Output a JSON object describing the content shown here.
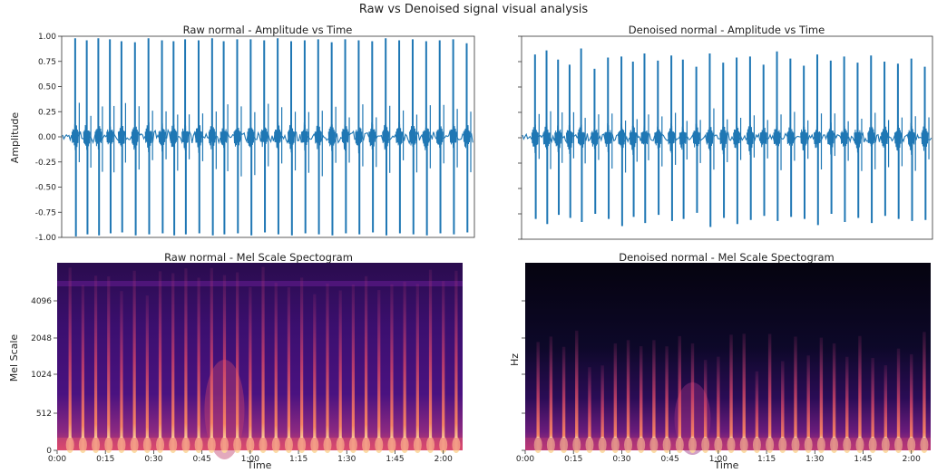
{
  "figure": {
    "title": "Raw vs Denoised signal visual analysis"
  },
  "colors": {
    "waveform": "#1f77b4",
    "spec_background": "#0d0829",
    "spec_mid": "#6a1c7c",
    "spec_hot": "#f2a45c"
  },
  "chart_data": [
    {
      "type": "line",
      "title": "Raw normal - Amplitude vs Time",
      "xlabel": "",
      "ylabel": "Amplitude",
      "ylim": [
        -1.0,
        1.0
      ],
      "y_ticks": [
        "1.00",
        "0.75",
        "0.50",
        "0.25",
        "0.00",
        "-0.25",
        "-0.50",
        "-0.75",
        "-1.00"
      ],
      "series": [
        {
          "beat_times_s": [
            0.07,
            0.13,
            0.19,
            0.25,
            0.31,
            0.38,
            0.45,
            0.52,
            0.58,
            0.64,
            0.71,
            0.78,
            0.84,
            0.91,
            0.98,
            1.05,
            1.12,
            1.19,
            1.26,
            1.33,
            1.4,
            1.47,
            1.54,
            1.61,
            1.68,
            1.75,
            1.82,
            1.89,
            1.96,
            2.03,
            2.1
          ],
          "peak_up": [
            0.98,
            0.96,
            0.98,
            0.97,
            0.95,
            0.94,
            0.98,
            0.96,
            0.95,
            0.97,
            0.96,
            0.98,
            0.95,
            0.97,
            0.97,
            0.96,
            0.98,
            0.95,
            0.96,
            0.97,
            0.94,
            0.97,
            0.96,
            0.95,
            0.98,
            0.96,
            0.97,
            0.95,
            0.96,
            0.97,
            0.93
          ],
          "peak_down": [
            -0.99,
            -0.97,
            -0.98,
            -0.96,
            -0.95,
            -0.98,
            -0.97,
            -0.96,
            -0.98,
            -0.97,
            -0.96,
            -0.98,
            -0.97,
            -0.96,
            -0.98,
            -0.95,
            -0.97,
            -0.98,
            -0.96,
            -0.97,
            -0.98,
            -0.96,
            -0.97,
            -0.95,
            -0.98,
            -0.96,
            -0.97,
            -0.98,
            -0.96,
            -0.97,
            -0.95
          ]
        }
      ]
    },
    {
      "type": "line",
      "title": "Denoised normal - Amplitude vs Time",
      "xlabel": "",
      "ylabel": "",
      "ylim": [
        -1.0,
        1.0
      ],
      "series": [
        {
          "beat_times_s": [
            0.07,
            0.13,
            0.19,
            0.25,
            0.31,
            0.38,
            0.45,
            0.52,
            0.58,
            0.64,
            0.71,
            0.78,
            0.84,
            0.91,
            0.98,
            1.05,
            1.12,
            1.19,
            1.26,
            1.33,
            1.4,
            1.47,
            1.54,
            1.61,
            1.68,
            1.75,
            1.82,
            1.89,
            1.96,
            2.03,
            2.1
          ],
          "peak_up": [
            0.82,
            0.86,
            0.77,
            0.72,
            0.88,
            0.68,
            0.79,
            0.8,
            0.75,
            0.83,
            0.76,
            0.81,
            0.77,
            0.7,
            0.83,
            0.74,
            0.79,
            0.8,
            0.72,
            0.85,
            0.78,
            0.71,
            0.82,
            0.76,
            0.8,
            0.74,
            0.81,
            0.75,
            0.73,
            0.78,
            0.7
          ],
          "peak_down": [
            -0.8,
            -0.85,
            -0.76,
            -0.79,
            -0.83,
            -0.75,
            -0.8,
            -0.87,
            -0.78,
            -0.84,
            -0.76,
            -0.82,
            -0.8,
            -0.74,
            -0.88,
            -0.79,
            -0.85,
            -0.81,
            -0.77,
            -0.82,
            -0.78,
            -0.8,
            -0.86,
            -0.75,
            -0.83,
            -0.79,
            -0.84,
            -0.77,
            -0.8,
            -0.82,
            -0.81
          ]
        }
      ]
    },
    {
      "type": "heatmap",
      "title": "Raw normal - Mel Scale Spectogram",
      "xlabel": "Time",
      "ylabel": "Mel Scale",
      "y_ticks": [
        "4096",
        "2048",
        "1024",
        "512",
        "0"
      ],
      "x_ticks": [
        "0:00",
        "0:15",
        "0:30",
        "0:45",
        "1:00",
        "1:15",
        "1:30",
        "1:45",
        "2:00"
      ],
      "x_tick_seconds": [
        0,
        15,
        30,
        45,
        60,
        75,
        90,
        105,
        120
      ],
      "x_range_s": [
        0,
        126
      ],
      "beat_times_s": [
        4,
        8,
        12,
        16,
        20,
        24,
        28,
        32,
        36,
        40,
        44,
        48,
        52,
        56,
        60,
        64,
        68,
        72,
        76,
        80,
        84,
        88,
        92,
        96,
        100,
        104,
        108,
        112,
        116,
        120,
        124
      ]
    },
    {
      "type": "heatmap",
      "title": "Denoised normal - Mel Scale Spectogram",
      "xlabel": "Time",
      "ylabel": "Hz",
      "x_ticks": [
        "0:00",
        "0:15",
        "0:30",
        "0:45",
        "1:00",
        "1:15",
        "1:30",
        "1:45",
        "2:00"
      ],
      "x_tick_seconds": [
        0,
        15,
        30,
        45,
        60,
        75,
        90,
        105,
        120
      ],
      "x_range_s": [
        0,
        126
      ],
      "beat_times_s": [
        4,
        8,
        12,
        16,
        20,
        24,
        28,
        32,
        36,
        40,
        44,
        48,
        52,
        56,
        60,
        64,
        68,
        72,
        76,
        80,
        84,
        88,
        92,
        96,
        100,
        104,
        108,
        112,
        116,
        120,
        124
      ]
    }
  ]
}
